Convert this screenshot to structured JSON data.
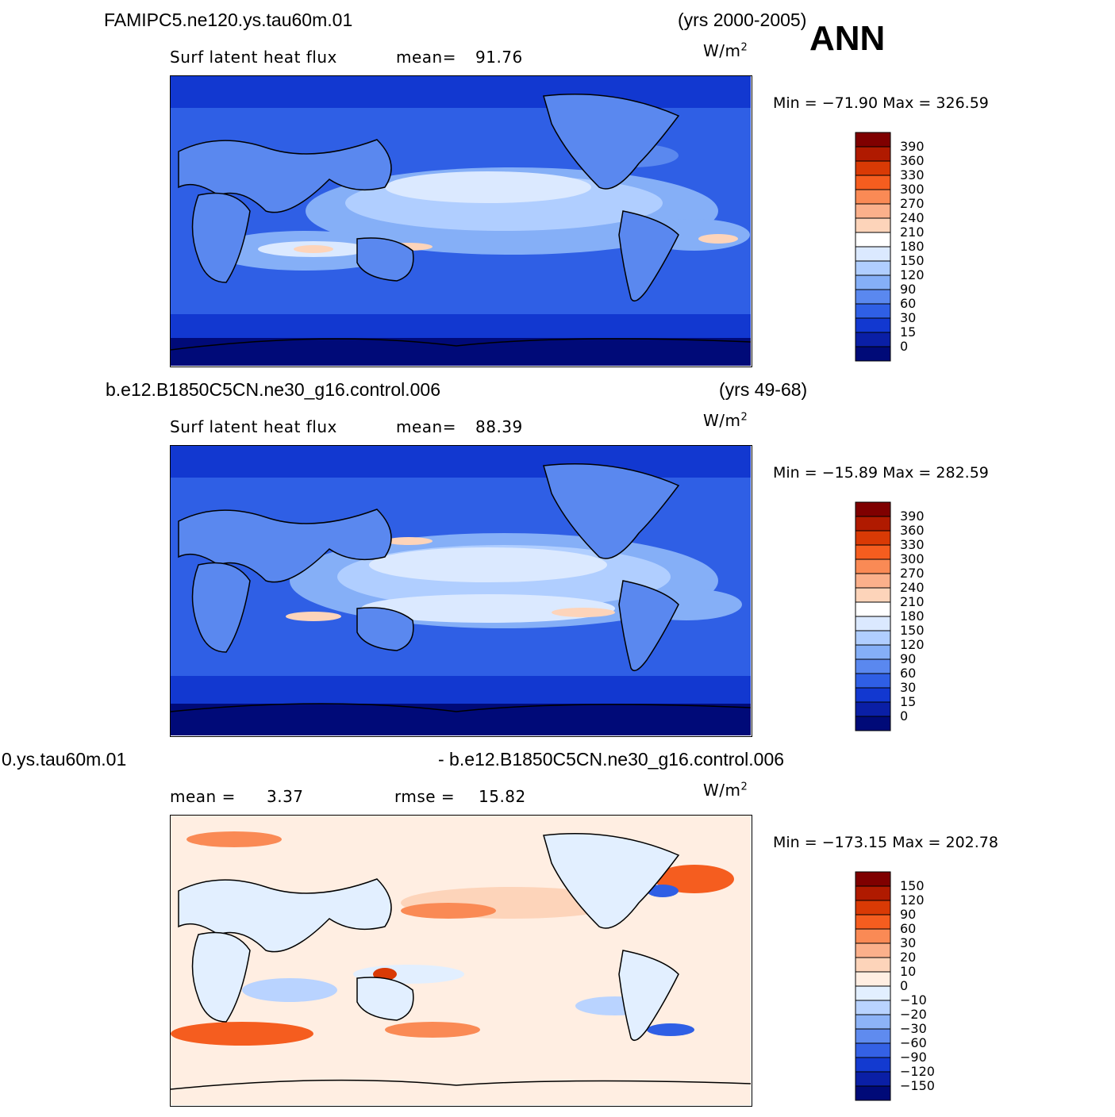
{
  "corner_label": "ANN",
  "panels": [
    {
      "case_name": "FAMIPC5.ne120.ys.tau60m.01",
      "years": "(yrs 2000-2005)",
      "variable": "Surf  latent  heat  flux",
      "stat1_label": "mean=",
      "stat1_value": "91.76",
      "units_base": "W/m",
      "units_exp": "2",
      "min_label": "Min  =",
      "min_value": "−71.90",
      "max_label": "Max  =",
      "max_value": "326.59",
      "colorbar_levels": [
        "390",
        "360",
        "330",
        "300",
        "270",
        "240",
        "210",
        "180",
        "150",
        "120",
        "90",
        "60",
        "30",
        "15",
        "0"
      ],
      "colorbar_colors": [
        "#7f0000",
        "#b01a00",
        "#d93a05",
        "#f55d1f",
        "#fa8a55",
        "#fbb08b",
        "#fdd4ba",
        "#ffffff",
        "#dbe9ff",
        "#b0ceff",
        "#85aff7",
        "#5a88ef",
        "#2f5fe5",
        "#1238d0",
        "#0a1fa6",
        "#000a78"
      ]
    },
    {
      "case_name": "b.e12.B1850C5CN.ne30_g16.control.006",
      "years": "(yrs 49-68)",
      "variable": "Surf  latent  heat  flux",
      "stat1_label": "mean=",
      "stat1_value": "88.39",
      "units_base": "W/m",
      "units_exp": "2",
      "min_label": "Min  =",
      "min_value": "−15.89",
      "max_label": "Max  =",
      "max_value": "282.59",
      "colorbar_levels": [
        "390",
        "360",
        "330",
        "300",
        "270",
        "240",
        "210",
        "180",
        "150",
        "120",
        "90",
        "60",
        "30",
        "15",
        "0"
      ],
      "colorbar_colors": [
        "#7f0000",
        "#b01a00",
        "#d93a05",
        "#f55d1f",
        "#fa8a55",
        "#fbb08b",
        "#fdd4ba",
        "#ffffff",
        "#dbe9ff",
        "#b0ceff",
        "#85aff7",
        "#5a88ef",
        "#2f5fe5",
        "#1238d0",
        "#0a1fa6",
        "#000a78"
      ]
    },
    {
      "case_name": "0.ys.tau60m.01",
      "years": "- b.e12.B1850C5CN.ne30_g16.control.006",
      "stat1_label": "mean  =",
      "stat1_value": "3.37",
      "stat2_label": "rmse  =",
      "stat2_value": "15.82",
      "units_base": "W/m",
      "units_exp": "2",
      "min_label": "Min  =",
      "min_value": "−173.15",
      "max_label": "Max  =",
      "max_value": "202.78",
      "colorbar_levels": [
        "150",
        "120",
        "90",
        "60",
        "30",
        "20",
        "10",
        "0",
        "−10",
        "−20",
        "−30",
        "−60",
        "−90",
        "−120",
        "−150"
      ],
      "colorbar_colors": [
        "#7f0000",
        "#b01a00",
        "#d93a05",
        "#f55d1f",
        "#fa8a55",
        "#fbb08b",
        "#fdd4ba",
        "#ffeee2",
        "#e2efff",
        "#b9d3ff",
        "#8db3f7",
        "#5f8bef",
        "#3461e5",
        "#133ad0",
        "#0a1fa6",
        "#000a78"
      ]
    }
  ]
}
